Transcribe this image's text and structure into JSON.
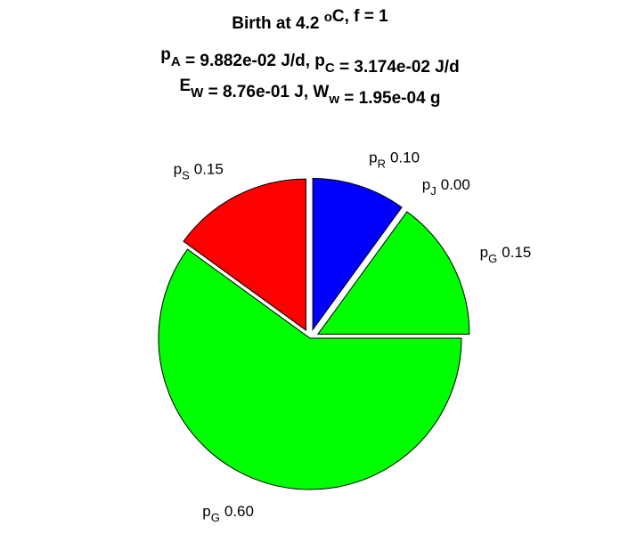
{
  "chart_data": {
    "type": "pie",
    "title": [
      [
        {
          "text": "Birth at 4.2 "
        },
        {
          "sup": "o"
        },
        {
          "text": "C, f = 1"
        }
      ],
      [
        {
          "text": "p"
        },
        {
          "sub": "A"
        },
        {
          "text": " = 9.882e-02 J/d, p"
        },
        {
          "sub": "C"
        },
        {
          "text": " = 3.174e-02 J/d"
        }
      ],
      [
        {
          "text": "E"
        },
        {
          "sub": "W"
        },
        {
          "text": " = 8.76e-01 J, W"
        },
        {
          "sub": "w"
        },
        {
          "text": " = 1.95e-04 g"
        }
      ]
    ],
    "labels": [
      {
        "text": "p",
        "sub": "R"
      },
      {
        "text": "p",
        "sub": "J"
      },
      {
        "text": "p",
        "sub": "G"
      },
      {
        "text": "p",
        "sub": "G"
      },
      {
        "text": "p",
        "sub": "S"
      }
    ],
    "values": [
      0.1,
      0.0,
      0.15,
      0.6,
      0.15
    ],
    "value_labels": [
      "0.10",
      "0.00",
      "0.15",
      "0.60",
      "0.15"
    ],
    "colors": [
      "#0000ff",
      null,
      "#00ff00",
      "#00ff00",
      "#ff0000"
    ],
    "explode": [
      true,
      true,
      true,
      false,
      true
    ]
  }
}
